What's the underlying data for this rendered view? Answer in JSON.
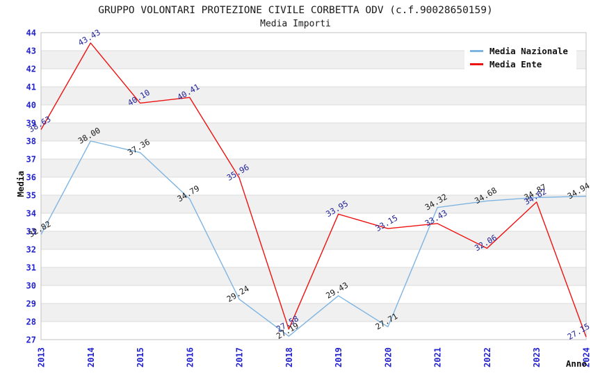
{
  "header": {
    "title": "GRUPPO VOLONTARI PROTEZIONE CIVILE CORBETTA ODV (c.f.90028650159)",
    "subtitle": "Media Importi"
  },
  "axes": {
    "y_title": "Media",
    "x_title": "Anno",
    "tick_color": "#2222cc"
  },
  "chart_data": {
    "type": "line",
    "title": "GRUPPO VOLONTARI PROTEZIONE CIVILE CORBETTA ODV (c.f.90028650159)",
    "subtitle": "Media Importi",
    "xlabel": "Anno",
    "ylabel": "Media",
    "x": [
      "2013",
      "2014",
      "2015",
      "2016",
      "2017",
      "2018",
      "2019",
      "2020",
      "2021",
      "2022",
      "2023",
      "2024"
    ],
    "series": [
      {
        "name": "Media Nazionale",
        "color": "#7eb4e2",
        "label_color": "#1a1a1a",
        "values": [
          32.82,
          38.0,
          37.36,
          34.79,
          29.24,
          27.19,
          29.43,
          27.71,
          34.32,
          34.68,
          34.87,
          34.94
        ]
      },
      {
        "name": "Media Ente",
        "color": "#ee1111",
        "label_color": "#222299",
        "values": [
          38.63,
          43.43,
          40.1,
          40.41,
          35.96,
          27.58,
          33.95,
          33.15,
          33.43,
          32.06,
          34.62,
          27.15
        ]
      }
    ],
    "ylim": [
      27,
      44
    ],
    "y_tick_step": 1,
    "grid": "horizontal gridlines with alternating bands",
    "band_colors": [
      "#ffffff",
      "#f0f0f0"
    ],
    "gridline_color": "#dcdcdc",
    "border_color": "#c2c2c2",
    "legend_position": "top-right",
    "point_labels": "each point labeled with value, rotated -30deg"
  }
}
